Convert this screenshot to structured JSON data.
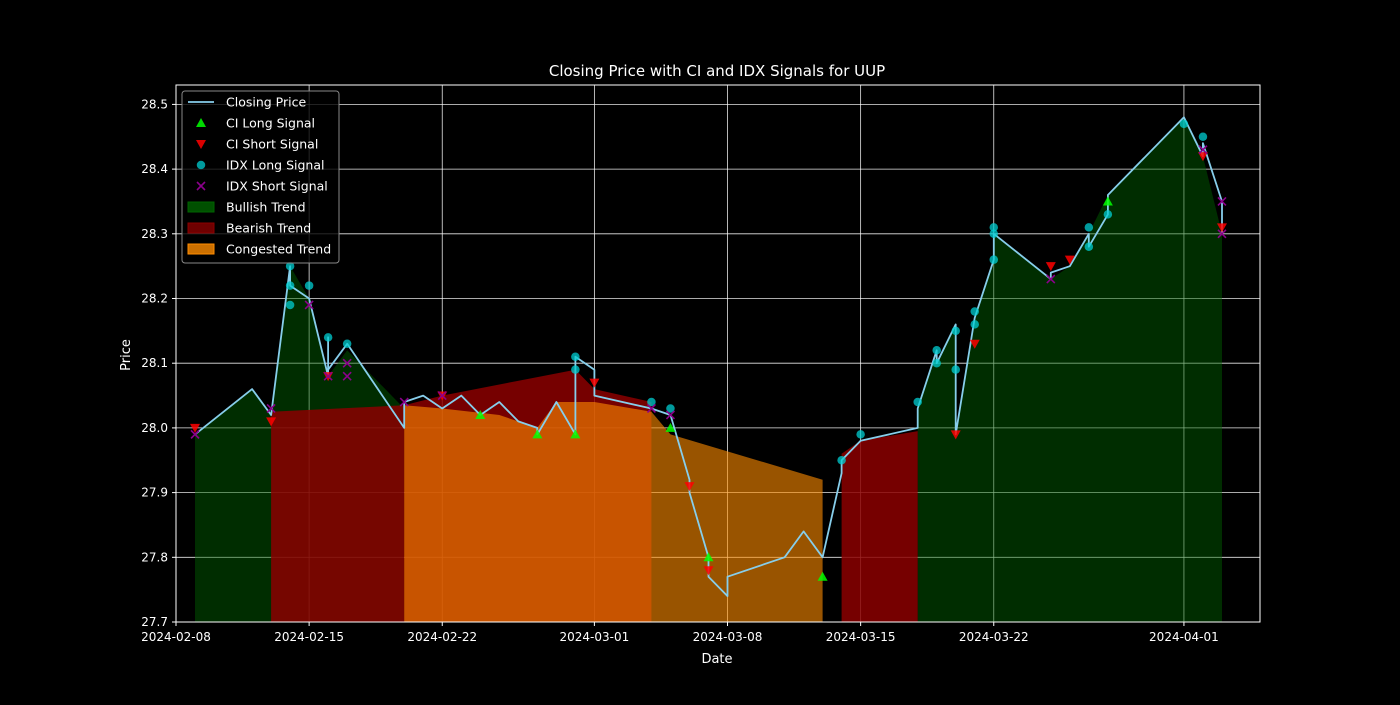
{
  "chart_data": {
    "type": "line",
    "title": "Closing Price with CI and IDX Signals for UUP",
    "xlabel": "Date",
    "ylabel": "Price",
    "xlim": [
      "2024-02-08",
      "2024-04-05"
    ],
    "ylim": [
      27.7,
      28.53
    ],
    "x_ticks": [
      "2024-02-08",
      "2024-02-15",
      "2024-02-22",
      "2024-03-01",
      "2024-03-08",
      "2024-03-15",
      "2024-03-22",
      "2024-04-01"
    ],
    "y_ticks": [
      27.7,
      27.8,
      27.9,
      28.0,
      28.1,
      28.2,
      28.3,
      28.4,
      28.5
    ],
    "grid": true,
    "legend_position": "top-left",
    "colors": {
      "background": "#000000",
      "text": "#ffffff",
      "grid": "#ffffff",
      "closing_price": "#87ceeb",
      "ci_long": "#00ff00",
      "ci_short": "#ff0000",
      "idx_long": "#00ced1",
      "idx_short": "#8b008b",
      "bullish": "#006400",
      "bearish": "#8b0000",
      "congested": "#ff8c00"
    },
    "series": [
      {
        "name": "Closing Price",
        "kind": "line",
        "color": "#87ceeb",
        "points": [
          [
            "2024-02-09",
            27.99
          ],
          [
            "2024-02-12",
            28.06
          ],
          [
            "2024-02-13",
            28.02
          ],
          [
            "2024-02-14",
            28.25
          ],
          [
            "2024-02-14",
            28.22
          ],
          [
            "2024-02-15",
            28.2
          ],
          [
            "2024-02-16",
            28.08
          ],
          [
            "2024-02-16",
            28.14
          ],
          [
            "2024-02-16",
            28.09
          ],
          [
            "2024-02-17",
            28.13
          ],
          [
            "2024-02-20",
            28.0
          ],
          [
            "2024-02-20",
            28.04
          ],
          [
            "2024-02-21",
            28.05
          ],
          [
            "2024-02-22",
            28.03
          ],
          [
            "2024-02-23",
            28.05
          ],
          [
            "2024-02-24",
            28.02
          ],
          [
            "2024-02-25",
            28.04
          ],
          [
            "2024-02-26",
            28.01
          ],
          [
            "2024-02-27",
            28.0
          ],
          [
            "2024-02-27",
            27.99
          ],
          [
            "2024-02-28",
            28.04
          ],
          [
            "2024-02-29",
            27.99
          ],
          [
            "2024-02-29",
            28.11
          ],
          [
            "2024-03-01",
            28.09
          ],
          [
            "2024-03-01",
            28.05
          ],
          [
            "2024-03-04",
            28.03
          ],
          [
            "2024-03-05",
            28.02
          ],
          [
            "2024-03-06",
            27.92
          ],
          [
            "2024-03-06",
            27.9
          ],
          [
            "2024-03-07",
            27.8
          ],
          [
            "2024-03-07",
            27.77
          ],
          [
            "2024-03-08",
            27.74
          ],
          [
            "2024-03-08",
            27.77
          ],
          [
            "2024-03-11",
            27.8
          ],
          [
            "2024-03-12",
            27.84
          ],
          [
            "2024-03-13",
            27.8
          ],
          [
            "2024-03-14",
            27.93
          ],
          [
            "2024-03-14",
            27.95
          ],
          [
            "2024-03-15",
            27.98
          ],
          [
            "2024-03-18",
            28.0
          ],
          [
            "2024-03-18",
            28.03
          ],
          [
            "2024-03-19",
            28.12
          ],
          [
            "2024-03-19",
            28.1
          ],
          [
            "2024-03-20",
            28.16
          ],
          [
            "2024-03-20",
            27.99
          ],
          [
            "2024-03-21",
            28.17
          ],
          [
            "2024-03-22",
            28.26
          ],
          [
            "2024-03-22",
            28.3
          ],
          [
            "2024-03-25",
            28.23
          ],
          [
            "2024-03-25",
            28.24
          ],
          [
            "2024-03-26",
            28.25
          ],
          [
            "2024-03-27",
            28.3
          ],
          [
            "2024-03-27",
            28.28
          ],
          [
            "2024-03-28",
            28.33
          ],
          [
            "2024-03-28",
            28.36
          ],
          [
            "2024-04-01",
            28.48
          ],
          [
            "2024-04-02",
            28.42
          ],
          [
            "2024-04-02",
            28.44
          ],
          [
            "2024-04-03",
            28.35
          ],
          [
            "2024-04-03",
            28.3
          ]
        ]
      },
      {
        "name": "CI Long Signal",
        "kind": "scatter",
        "marker": "triangle-up",
        "color": "#00ff00",
        "points": [
          [
            "2024-02-24",
            28.02
          ],
          [
            "2024-02-27",
            27.99
          ],
          [
            "2024-02-29",
            27.99
          ],
          [
            "2024-03-05",
            28.0
          ],
          [
            "2024-03-07",
            27.8
          ],
          [
            "2024-03-13",
            27.77
          ],
          [
            "2024-03-28",
            28.35
          ]
        ]
      },
      {
        "name": "CI Short Signal",
        "kind": "scatter",
        "marker": "triangle-down",
        "color": "#ff0000",
        "points": [
          [
            "2024-02-09",
            28.0
          ],
          [
            "2024-02-13",
            28.01
          ],
          [
            "2024-02-16",
            28.08
          ],
          [
            "2024-02-22",
            28.05
          ],
          [
            "2024-03-01",
            28.07
          ],
          [
            "2024-03-06",
            27.91
          ],
          [
            "2024-03-07",
            27.78
          ],
          [
            "2024-03-20",
            27.99
          ],
          [
            "2024-03-21",
            28.13
          ],
          [
            "2024-03-25",
            28.25
          ],
          [
            "2024-03-26",
            28.26
          ],
          [
            "2024-04-02",
            28.42
          ],
          [
            "2024-04-03",
            28.31
          ]
        ]
      },
      {
        "name": "IDX Long Signal",
        "kind": "scatter",
        "marker": "circle",
        "color": "#00ced1",
        "points": [
          [
            "2024-02-14",
            28.19
          ],
          [
            "2024-02-14",
            28.22
          ],
          [
            "2024-02-14",
            28.25
          ],
          [
            "2024-02-15",
            28.22
          ],
          [
            "2024-02-16",
            28.14
          ],
          [
            "2024-02-17",
            28.13
          ],
          [
            "2024-02-29",
            28.11
          ],
          [
            "2024-02-29",
            28.09
          ],
          [
            "2024-03-04",
            28.04
          ],
          [
            "2024-03-05",
            28.03
          ],
          [
            "2024-03-14",
            27.95
          ],
          [
            "2024-03-15",
            27.99
          ],
          [
            "2024-03-18",
            28.04
          ],
          [
            "2024-03-19",
            28.12
          ],
          [
            "2024-03-19",
            28.1
          ],
          [
            "2024-03-20",
            28.15
          ],
          [
            "2024-03-20",
            28.09
          ],
          [
            "2024-03-21",
            28.16
          ],
          [
            "2024-03-21",
            28.18
          ],
          [
            "2024-03-22",
            28.26
          ],
          [
            "2024-03-22",
            28.3
          ],
          [
            "2024-03-22",
            28.31
          ],
          [
            "2024-03-27",
            28.31
          ],
          [
            "2024-03-27",
            28.28
          ],
          [
            "2024-03-28",
            28.33
          ],
          [
            "2024-04-01",
            28.47
          ],
          [
            "2024-04-02",
            28.45
          ]
        ]
      },
      {
        "name": "IDX Short Signal",
        "kind": "scatter",
        "marker": "x",
        "color": "#8b008b",
        "points": [
          [
            "2024-02-09",
            27.99
          ],
          [
            "2024-02-13",
            28.03
          ],
          [
            "2024-02-15",
            28.19
          ],
          [
            "2024-02-16",
            28.08
          ],
          [
            "2024-02-17",
            28.08
          ],
          [
            "2024-02-17",
            28.1
          ],
          [
            "2024-02-20",
            28.04
          ],
          [
            "2024-02-22",
            28.05
          ],
          [
            "2024-03-04",
            28.03
          ],
          [
            "2024-03-05",
            28.02
          ],
          [
            "2024-03-25",
            28.23
          ],
          [
            "2024-04-02",
            28.43
          ],
          [
            "2024-04-03",
            28.35
          ],
          [
            "2024-04-03",
            28.3
          ]
        ]
      },
      {
        "name": "Bullish Trend",
        "kind": "area",
        "color": "#006400",
        "opacity": 0.45,
        "points": [
          [
            "2024-02-09",
            27.99
          ],
          [
            "2024-02-12",
            28.06
          ],
          [
            "2024-02-13",
            28.02
          ],
          [
            "2024-02-14",
            28.25
          ],
          [
            "2024-02-15",
            28.2
          ],
          [
            "2024-02-16",
            28.08
          ],
          [
            "2024-02-17",
            28.12
          ],
          [
            "2024-02-20",
            28.03
          ],
          [
            "2024-02-20",
            27.7
          ],
          [
            "2024-02-09",
            27.7
          ]
        ],
        "extra_polygons": [
          [
            [
              "2024-03-18",
              28.0
            ],
            [
              "2024-03-18",
              28.03
            ],
            [
              "2024-03-19",
              28.12
            ],
            [
              "2024-03-19",
              28.1
            ],
            [
              "2024-03-20",
              28.16
            ],
            [
              "2024-03-20",
              27.99
            ],
            [
              "2024-03-21",
              28.17
            ],
            [
              "2024-03-22",
              28.26
            ],
            [
              "2024-03-22",
              28.3
            ],
            [
              "2024-03-25",
              28.23
            ],
            [
              "2024-03-26",
              28.25
            ],
            [
              "2024-03-27",
              28.3
            ],
            [
              "2024-03-28",
              28.36
            ],
            [
              "2024-04-01",
              28.48
            ],
            [
              "2024-04-02",
              28.42
            ],
            [
              "2024-04-03",
              28.3
            ],
            [
              "2024-04-03",
              27.7
            ],
            [
              "2024-03-18",
              27.7
            ]
          ]
        ]
      },
      {
        "name": "Bearish Trend",
        "kind": "area",
        "color": "#8b0000",
        "opacity": 0.85,
        "points": [
          [
            "2024-02-13",
            28.025
          ],
          [
            "2024-02-20",
            28.035
          ],
          [
            "2024-02-20",
            27.7
          ],
          [
            "2024-02-13",
            27.7
          ]
        ],
        "extra_polygons": [
          [
            [
              "2024-02-20",
              28.035
            ],
            [
              "2024-02-22",
              28.05
            ],
            [
              "2024-02-29",
              28.09
            ],
            [
              "2024-03-01",
              28.06
            ],
            [
              "2024-03-04",
              28.04
            ],
            [
              "2024-03-04",
              27.7
            ],
            [
              "2024-02-20",
              27.7
            ]
          ],
          [
            [
              "2024-03-14",
              27.96
            ],
            [
              "2024-03-15",
              27.98
            ],
            [
              "2024-03-18",
              27.995
            ],
            [
              "2024-03-18",
              27.7
            ],
            [
              "2024-03-14",
              27.7
            ]
          ]
        ]
      },
      {
        "name": "Congested Trend",
        "kind": "area",
        "color": "#ff8c00",
        "opacity": 0.6,
        "points": [
          [
            "2024-02-20",
            28.035
          ],
          [
            "2024-02-22",
            28.03
          ],
          [
            "2024-02-25",
            28.02
          ],
          [
            "2024-02-27",
            28.0
          ],
          [
            "2024-02-28",
            28.04
          ],
          [
            "2024-03-01",
            28.04
          ],
          [
            "2024-03-04",
            28.025
          ],
          [
            "2024-03-05",
            27.99
          ],
          [
            "2024-03-13",
            27.92
          ],
          [
            "2024-03-13",
            27.7
          ],
          [
            "2024-02-20",
            27.7
          ]
        ]
      }
    ],
    "legend": [
      {
        "label": "Closing Price",
        "swatch": "line",
        "color": "#87ceeb"
      },
      {
        "label": "CI Long Signal",
        "swatch": "triangle-up",
        "color": "#00ff00"
      },
      {
        "label": "CI Short Signal",
        "swatch": "triangle-down",
        "color": "#ff0000"
      },
      {
        "label": "IDX Long Signal",
        "swatch": "circle",
        "color": "#00ced1"
      },
      {
        "label": "IDX Short Signal",
        "swatch": "x",
        "color": "#8b008b"
      },
      {
        "label": "Bullish Trend",
        "swatch": "patch",
        "color": "#006400"
      },
      {
        "label": "Bearish Trend",
        "swatch": "patch",
        "color": "#8b0000"
      },
      {
        "label": "Congested Trend",
        "swatch": "patch",
        "color": "#ff8c00"
      }
    ]
  }
}
